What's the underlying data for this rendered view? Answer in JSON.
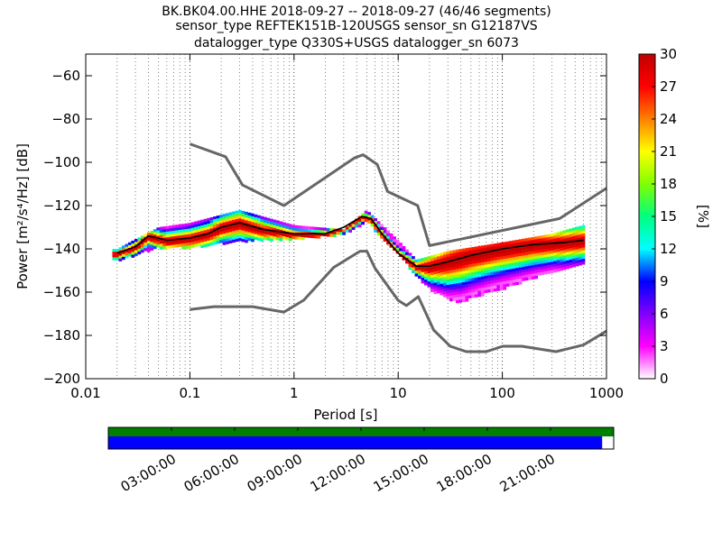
{
  "header": {
    "line1": "BK.BK04.00.HHE   2018-09-27 -- 2018-09-27  (46/46 segments)",
    "line2": "sensor_type REFTEK151B-120USGS sensor_sn G12187VS",
    "line3": "datalogger_type Q330S+USGS datalogger_sn 6073"
  },
  "chart_data": {
    "type": "heatmap",
    "title": "BK.BK04.00.HHE   2018-09-27 -- 2018-09-27  (46/46 segments)",
    "xlabel": "Period [s]",
    "ylabel": "Power [m²/s⁴/Hz] [dB]",
    "xscale": "log",
    "xlim": [
      0.01,
      1000
    ],
    "ylim": [
      -200,
      -50
    ],
    "x_ticks": [
      0.01,
      0.1,
      1,
      10,
      100,
      1000
    ],
    "x_tick_labels": [
      "0.01",
      "0.1",
      "1",
      "10",
      "100",
      "1000"
    ],
    "y_ticks": [
      -200,
      -180,
      -160,
      -140,
      -120,
      -100,
      -80,
      -60
    ],
    "y_tick_labels": [
      "−200",
      "−180",
      "−160",
      "−140",
      "−120",
      "−100",
      "−80",
      "−60"
    ],
    "grid": "dotted vertical",
    "colorbar": {
      "label": "[%]",
      "range": [
        0,
        30
      ],
      "ticks": [
        0,
        3,
        6,
        9,
        12,
        15,
        18,
        21,
        24,
        27,
        30
      ],
      "tick_labels": [
        "0",
        "3",
        "6",
        "9",
        "12",
        "15",
        "18",
        "21",
        "24",
        "27",
        "30"
      ],
      "colors": [
        "#ffffff",
        "#ff00ff",
        "#8000ff",
        "#0000ff",
        "#00ffff",
        "#00ff80",
        "#80ff00",
        "#ffff00",
        "#ff8000",
        "#ff0000",
        "#c00000"
      ]
    },
    "noise_model_high": {
      "period": [
        0.1,
        0.22,
        0.32,
        0.8,
        3.8,
        4.6,
        6.3,
        7.9,
        15.4,
        20,
        354.8,
        1000
      ],
      "power": [
        -91.5,
        -97.4,
        -110.5,
        -120,
        -98,
        -96.5,
        -101,
        -113.5,
        -120,
        -138.5,
        -126,
        -112
      ]
    },
    "noise_model_low": {
      "period": [
        0.1,
        0.17,
        0.4,
        0.8,
        1.24,
        2.4,
        4.3,
        5,
        6,
        10,
        12,
        15.6,
        21.9,
        31.6,
        45,
        70,
        101,
        154,
        328,
        600,
        1000
      ],
      "power": [
        -168,
        -166.7,
        -166.7,
        -169.2,
        -163.7,
        -148.6,
        -141.1,
        -141.1,
        -149,
        -163.8,
        -166.2,
        -162.1,
        -177.5,
        -185,
        -187.5,
        -187.5,
        -185,
        -185,
        -187.5,
        -184.4,
        -178
      ]
    },
    "ppsd_mode": {
      "period": [
        0.02,
        0.03,
        0.04,
        0.06,
        0.1,
        0.15,
        0.2,
        0.3,
        0.5,
        1,
        2,
        3,
        4.5,
        5.5,
        7,
        10,
        15,
        20,
        30,
        50,
        100,
        200,
        400,
        600
      ],
      "power": [
        -142,
        -139,
        -134,
        -136,
        -135,
        -133,
        -130,
        -128,
        -131,
        -133,
        -133,
        -130,
        -125,
        -126,
        -133,
        -142,
        -148,
        -148,
        -146,
        -143,
        -140,
        -138,
        -137,
        -136
      ]
    },
    "ppsd_min": {
      "period": [
        0.02,
        0.05,
        0.1,
        0.3,
        1,
        3,
        5,
        10,
        15,
        20,
        30,
        40,
        70,
        100,
        300,
        600
      ],
      "power": [
        -145,
        -139,
        -139,
        -136,
        -135,
        -133,
        -127,
        -142,
        -152,
        -158,
        -163,
        -164,
        -160,
        -158,
        -150,
        -146
      ]
    },
    "ppsd_max": {
      "period": [
        0.02,
        0.05,
        0.1,
        0.3,
        1,
        3,
        5,
        10,
        15,
        30,
        100,
        300,
        600
      ],
      "power": [
        -140,
        -130,
        -128,
        -122,
        -129,
        -131,
        -122,
        -136,
        -145,
        -141,
        -137,
        -133,
        -129
      ]
    },
    "coverage_timeline": {
      "tick_labels": [
        "03:00:00",
        "06:00:00",
        "09:00:00",
        "12:00:00",
        "15:00:00",
        "18:00:00",
        "21:00:00"
      ],
      "tick_hours": [
        3,
        6,
        9,
        12,
        15,
        18,
        21
      ],
      "span_hours": [
        0,
        24
      ],
      "data_bar_end_hour": 23.45,
      "segments_color": "#008000",
      "data_color": "#0000ff"
    }
  }
}
